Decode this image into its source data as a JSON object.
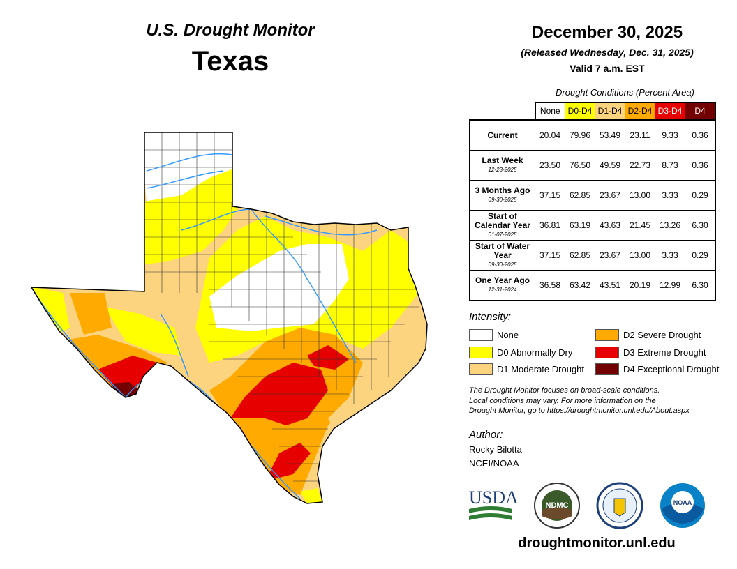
{
  "header": {
    "series_title": "U.S. Drought Monitor",
    "state": "Texas",
    "date": "December 30, 2025",
    "released": "(Released Wednesday, Dec. 31, 2025)",
    "valid": "Valid 7 a.m. EST"
  },
  "table": {
    "caption": "Drought Conditions (Percent Area)",
    "columns": [
      "None",
      "D0-D4",
      "D1-D4",
      "D2-D4",
      "D3-D4",
      "D4"
    ],
    "rows": [
      {
        "label": "Current",
        "date": "",
        "values": [
          "20.04",
          "79.96",
          "53.49",
          "23.11",
          "9.33",
          "0.36"
        ]
      },
      {
        "label": "Last Week",
        "date": "12-23-2025",
        "values": [
          "23.50",
          "76.50",
          "49.59",
          "22.73",
          "8.73",
          "0.36"
        ]
      },
      {
        "label": "3 Months Ago",
        "date": "09-30-2025",
        "values": [
          "37.15",
          "62.85",
          "23.67",
          "13.00",
          "3.33",
          "0.29"
        ]
      },
      {
        "label": "Start of Calendar Year",
        "date": "01-07-2025",
        "values": [
          "36.81",
          "63.19",
          "43.63",
          "21.45",
          "13.26",
          "6.30"
        ]
      },
      {
        "label": "Start of Water Year",
        "date": "09-30-2025",
        "values": [
          "37.15",
          "62.85",
          "23.67",
          "13.00",
          "3.33",
          "0.29"
        ]
      },
      {
        "label": "One Year Ago",
        "date": "12-31-2024",
        "values": [
          "36.58",
          "63.42",
          "43.51",
          "20.19",
          "12.99",
          "6.30"
        ]
      }
    ]
  },
  "legend": {
    "title": "Intensity:",
    "items": [
      {
        "label": "None",
        "color": "#ffffff"
      },
      {
        "label": "D0 Abnormally Dry",
        "color": "#ffff00"
      },
      {
        "label": "D1 Moderate Drought",
        "color": "#fcd37f"
      },
      {
        "label": "D2 Severe Drought",
        "color": "#ffaa00"
      },
      {
        "label": "D3 Extreme Drought",
        "color": "#e60000"
      },
      {
        "label": "D4 Exceptional Drought",
        "color": "#730000"
      }
    ]
  },
  "note": [
    "The Drought Monitor focuses on broad-scale conditions.",
    "Local conditions may vary. For more information on the",
    "Drought Monitor, go to https://droughtmonitor.unl.edu/About.aspx"
  ],
  "author": {
    "label": "Author:",
    "name": "Rocky Bilotta",
    "org": "NCEI/NOAA"
  },
  "logos": {
    "usda": "USDA",
    "ndmc": "NDMC",
    "noaa": "NOAA"
  },
  "footer_url": "droughtmonitor.unl.edu",
  "colors": {
    "river": "#3399ff",
    "county_lines": "#333333"
  }
}
